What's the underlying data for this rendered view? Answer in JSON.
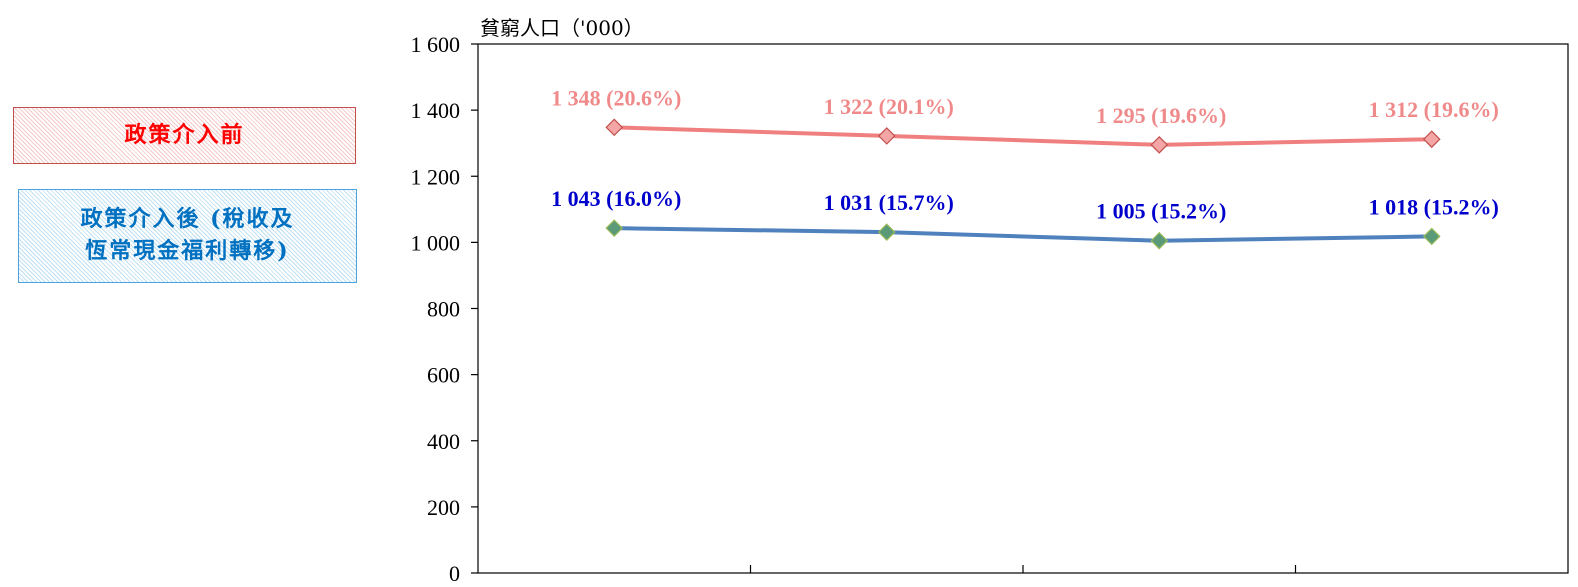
{
  "chart_data": {
    "type": "line",
    "ylabel": "貧窮人口（'000）",
    "ylim": [
      0,
      1600
    ],
    "yticks": [
      0,
      200,
      400,
      600,
      800,
      1000,
      1200,
      1400,
      1600
    ],
    "ytick_labels": [
      "0",
      "200",
      "400",
      "600",
      "800",
      "1 000",
      "1 200",
      "1 400",
      "1 600"
    ],
    "categories": [
      "",
      "",
      "",
      ""
    ],
    "series": [
      {
        "name": "政策介入前",
        "values": [
          1348,
          1322,
          1295,
          1312
        ],
        "labels": [
          "1 348 (20.6%)",
          "1 322 (20.1%)",
          "1 295 (19.6%)",
          "1 312 (19.6%)"
        ],
        "line_color": "#f08080",
        "marker_color": "#f4a5a5",
        "label_color": "#f08a8a"
      },
      {
        "name": "政策介入後 (稅收及恆常現金福利轉移)",
        "values": [
          1043,
          1031,
          1005,
          1018
        ],
        "labels": [
          "1 043 (16.0%)",
          "1 031 (15.7%)",
          "1 005 (15.2%)",
          "1 018 (15.2%)"
        ],
        "line_color": "#4f81bd",
        "marker_color": "#5a9a78",
        "label_color": "#0000cc"
      }
    ],
    "legend": {
      "placement": "left",
      "red_line1": "政策介入前",
      "blue_line1": "政策介入後 (稅收及",
      "blue_line2": "恆常現金福利轉移)",
      "red_text_color": "#ff0000",
      "blue_text_color": "#0070c0"
    },
    "grid": false
  }
}
